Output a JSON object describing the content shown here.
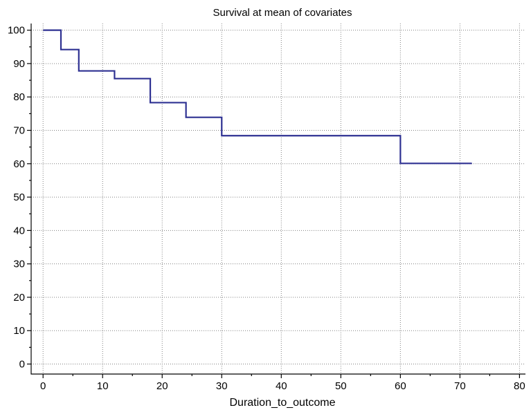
{
  "chart_data": {
    "type": "line",
    "title": "Survival at mean of covariates",
    "xlabel": "Duration_to_outcome",
    "ylabel": "",
    "xlim": [
      -2,
      81
    ],
    "ylim": [
      -3,
      102
    ],
    "x_ticks": [
      0,
      10,
      20,
      30,
      40,
      50,
      60,
      70,
      80
    ],
    "y_ticks": [
      0,
      10,
      20,
      30,
      40,
      50,
      60,
      70,
      80,
      90,
      100
    ],
    "grid": true,
    "step": true,
    "series": [
      {
        "color": "#2e3192",
        "x": [
          0,
          3,
          6,
          12,
          18,
          24,
          30,
          60,
          72
        ],
        "y": [
          100,
          94.2,
          87.8,
          85.5,
          78.3,
          73.9,
          68.4,
          60.1,
          60.1
        ]
      }
    ]
  }
}
